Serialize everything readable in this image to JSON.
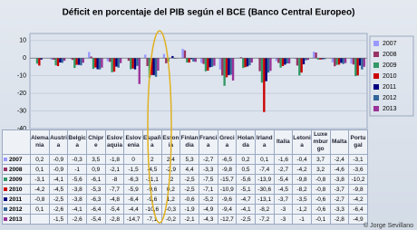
{
  "chart_data": {
    "type": "bar",
    "title": "Déficit en porcentaje del PIB según el BCE (Banco Central Europeo)",
    "watermark": "© Jorge Sevillano",
    "categories": [
      "Alemania",
      "Austria",
      "Belgica",
      "Chipre",
      "Eslovaquia",
      "Eslovenia",
      "España",
      "Estonia",
      "Finlandia",
      "Francia",
      "Grecia",
      "Holanda",
      "Irlanda",
      "Italia",
      "Letonia",
      "Luxemburgo",
      "Malta",
      "Portugal"
    ],
    "ylim": [
      -40,
      14
    ],
    "yticks": [
      -40,
      -30,
      -20,
      -10,
      0,
      10
    ],
    "grid": true,
    "series": [
      {
        "name": "2007",
        "color": "#9999ff",
        "values": [
          0.2,
          -0.9,
          -0.3,
          3.5,
          -1.8,
          0,
          2,
          2.4,
          5.3,
          -2.7,
          -6.5,
          0.2,
          0.1,
          -1.6,
          -0.4,
          3.7,
          -2.4,
          -3.1
        ],
        "value_labels": [
          "0,2",
          "-0,9",
          "-0,3",
          "3,5",
          "-1,8",
          "0",
          "2",
          "2,4",
          "5,3",
          "-2,7",
          "-6,5",
          "0,2",
          "0,1",
          "-1,6",
          "-0,4",
          "3,7",
          "-2,4",
          "-3,1"
        ]
      },
      {
        "name": "2008",
        "color": "#993366",
        "values": [
          0.1,
          -0.9,
          -1,
          0.9,
          -2.1,
          -1.5,
          -4.5,
          -2.9,
          4.4,
          -3.3,
          -9.8,
          0.5,
          -7.4,
          -2.7,
          -4.2,
          3.2,
          -4.6,
          -3.6
        ],
        "value_labels": [
          "0,1",
          "-0,9",
          "-1",
          "0,9",
          "-2,1",
          "-1,5",
          "-4,5",
          "-2,9",
          "4,4",
          "-3,3",
          "-9,8",
          "0,5",
          "-7,4",
          "-2,7",
          "-4,2",
          "3,2",
          "-4,6",
          "-3,6"
        ]
      },
      {
        "name": "2009",
        "color": "#339966",
        "values": [
          -3.1,
          -4.1,
          -5.6,
          -6.1,
          -8,
          -6.3,
          -11.1,
          -2,
          -2.5,
          -7.5,
          -15.7,
          -5.6,
          -13.9,
          -5.4,
          -9.8,
          -0.8,
          -3.8,
          -10.2
        ],
        "value_labels": [
          "-3,1",
          "-4,1",
          "-5,6",
          "-6,1",
          "-8",
          "-6,3",
          "-11,1",
          "-2",
          "-2,5",
          "-7,5",
          "-15,7",
          "-5,6",
          "-13,9",
          "-5,4",
          "-9,8",
          "-0,8",
          "-3,8",
          "-10,2"
        ]
      },
      {
        "name": "2010",
        "color": "#cc0000",
        "values": [
          -4.2,
          -4.5,
          -3.8,
          -5.3,
          -7.7,
          -5.9,
          -9.6,
          0.2,
          -2.5,
          -7.1,
          -10.9,
          -5.1,
          -30.6,
          -4.5,
          -8.2,
          -0.8,
          -3.7,
          -9.8
        ],
        "value_labels": [
          "-4,2",
          "-4,5",
          "-3,8",
          "-5,3",
          "-7,7",
          "-5,9",
          "-9,6",
          "0,2",
          "-2,5",
          "-7,1",
          "-10,9",
          "-5,1",
          "-30,6",
          "-4,5",
          "-8,2",
          "-0,8",
          "-3,7",
          "-9,8"
        ]
      },
      {
        "name": "2011",
        "color": "#000080",
        "values": [
          -0.8,
          -2.5,
          -3.8,
          -6.3,
          -4.8,
          -6.4,
          -9.6,
          1.2,
          -0.6,
          -5.2,
          -9.6,
          -4.7,
          -13.1,
          -3.7,
          -3.5,
          -0.6,
          -2.7,
          -4.2
        ],
        "value_labels": [
          "-0,8",
          "-2,5",
          "-3,8",
          "-6,3",
          "-4,8",
          "-6,4",
          "-9,6",
          "1,2",
          "-0,6",
          "-5,2",
          "-9,6",
          "-4,7",
          "-13,1",
          "-3,7",
          "-3,5",
          "-0,6",
          "-2,7",
          "-4,2"
        ]
      },
      {
        "name": "2012",
        "color": "#336699",
        "values": [
          0.1,
          -2.6,
          -4.1,
          -6.4,
          -5.4,
          -4.4,
          -10.6,
          -0.3,
          -1.9,
          -4.9,
          -9.4,
          -4.1,
          -8.2,
          -3,
          -1.2,
          -0.6,
          -3.3,
          -6.4
        ],
        "value_labels": [
          "0,1",
          "-2,6",
          "-4,1",
          "-6,4",
          "-5,4",
          "-4,4",
          "-10,6",
          "-0,3",
          "-1,9",
          "-4,9",
          "-9,4",
          "-4,1",
          "-8,2",
          "-3",
          "-1,2",
          "-0,6",
          "-3,3",
          "-6,4"
        ]
      },
      {
        "name": "2013",
        "color": "#993399",
        "values": [
          null,
          -1.5,
          -2.6,
          -5.4,
          -2.8,
          -14.7,
          -7.1,
          -0.2,
          -2.1,
          -4.3,
          -12.7,
          -2.5,
          -7.2,
          -3,
          -1,
          -0.1,
          -2.8,
          -4.9
        ],
        "value_labels": [
          null,
          "-1,5",
          "-2,6",
          "-5,4",
          "-2,8",
          "-14,7",
          "-7,1",
          "-0,2",
          "-2,1",
          "-4,3",
          "-12,7",
          "-2,5",
          "-7,2",
          "-3",
          "-1",
          "-0,1",
          "-2,8",
          "-4,9"
        ]
      }
    ]
  }
}
